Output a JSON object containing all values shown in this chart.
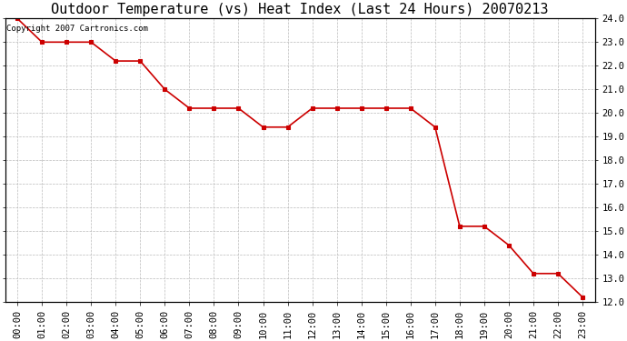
{
  "title": "Outdoor Temperature (vs) Heat Index (Last 24 Hours) 20070213",
  "copyright_text": "Copyright 2007 Cartronics.com",
  "x_labels": [
    "00:00",
    "01:00",
    "02:00",
    "03:00",
    "04:00",
    "05:00",
    "06:00",
    "07:00",
    "08:00",
    "09:00",
    "10:00",
    "11:00",
    "12:00",
    "13:00",
    "14:00",
    "15:00",
    "16:00",
    "17:00",
    "18:00",
    "19:00",
    "20:00",
    "21:00",
    "22:00",
    "23:00"
  ],
  "y_values": [
    24.0,
    23.0,
    23.0,
    23.0,
    22.2,
    22.2,
    21.0,
    20.2,
    20.2,
    20.2,
    19.4,
    19.4,
    20.2,
    20.2,
    20.2,
    20.2,
    20.2,
    19.4,
    15.2,
    15.2,
    14.4,
    13.2,
    13.2,
    12.2
  ],
  "ylim_min": 12.0,
  "ylim_max": 24.0,
  "yticks": [
    12.0,
    13.0,
    14.0,
    15.0,
    16.0,
    17.0,
    18.0,
    19.0,
    20.0,
    21.0,
    22.0,
    23.0,
    24.0
  ],
  "line_color": "#cc0000",
  "marker": "s",
  "marker_color": "#cc0000",
  "marker_size": 3,
  "background_color": "#ffffff",
  "grid_color": "#bbbbbb",
  "title_fontsize": 11,
  "copyright_fontsize": 6.5,
  "tick_fontsize": 7.5,
  "ytick_label_fontsize": 7.5,
  "fig_width": 6.9,
  "fig_height": 3.75,
  "dpi": 100
}
